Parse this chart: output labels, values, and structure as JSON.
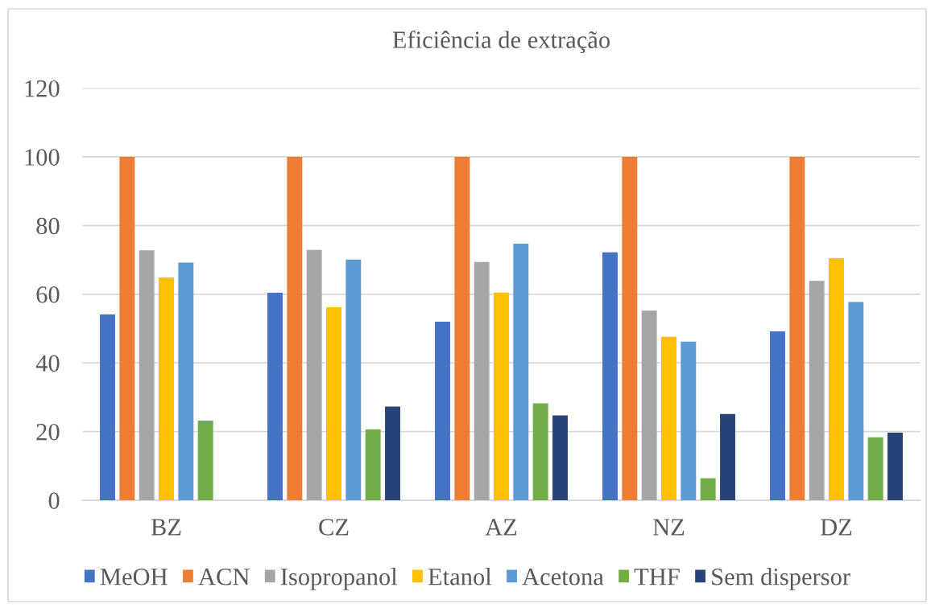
{
  "chart_data": {
    "type": "bar",
    "title": "Eficiência de extração",
    "categories": [
      "BZ",
      "CZ",
      "AZ",
      "NZ",
      "DZ"
    ],
    "series": [
      {
        "name": "MeOH",
        "color": "#4472c4",
        "values": [
          54.1,
          60.4,
          52.0,
          72.2,
          49.2
        ]
      },
      {
        "name": "ACN",
        "color": "#ed7d31",
        "values": [
          100,
          100,
          100,
          100,
          100
        ]
      },
      {
        "name": "Isopropanol",
        "color": "#a5a5a5",
        "values": [
          72.8,
          72.9,
          69.4,
          55.2,
          63.9
        ]
      },
      {
        "name": "Etanol",
        "color": "#ffc000",
        "values": [
          64.9,
          56.2,
          60.5,
          47.6,
          70.5
        ]
      },
      {
        "name": "Acetona",
        "color": "#5b9bd5",
        "values": [
          69.2,
          70.1,
          74.7,
          46.2,
          57.7
        ]
      },
      {
        "name": "THF",
        "color": "#70ad47",
        "values": [
          23.2,
          20.6,
          28.2,
          6.4,
          18.3
        ]
      },
      {
        "name": "Sem dispersor",
        "color": "#264478",
        "values": [
          null,
          27.3,
          24.7,
          25.1,
          19.7
        ]
      }
    ],
    "ylim": [
      0,
      120
    ],
    "yticks": [
      0,
      20,
      40,
      60,
      80,
      100,
      120
    ],
    "grid": "y",
    "legend": "bottom"
  }
}
